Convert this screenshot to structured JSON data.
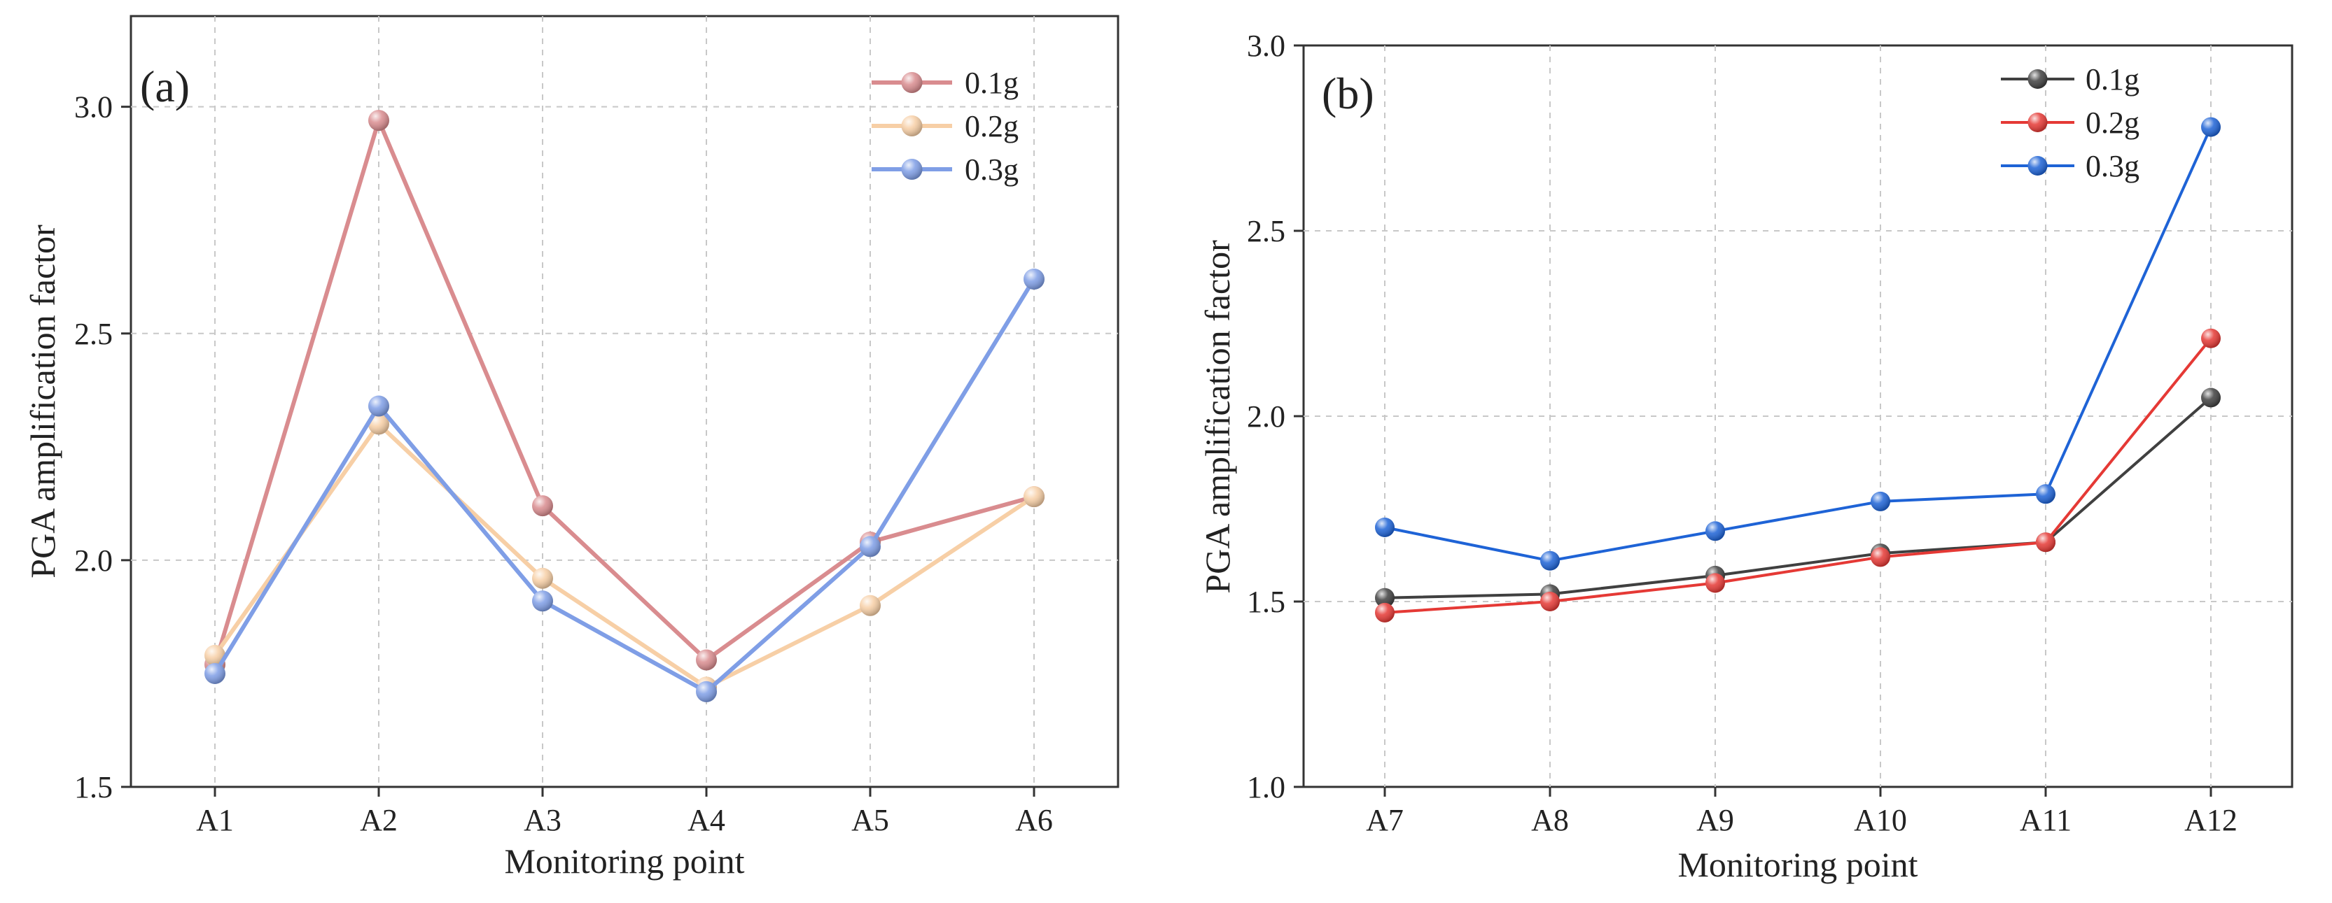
{
  "chart_data": [
    {
      "type": "line",
      "panel_label": "(a)",
      "title": "",
      "xlabel": "Monitoring point",
      "ylabel": "PGA amplification factor",
      "categories": [
        "A1",
        "A2",
        "A3",
        "A4",
        "A5",
        "A6"
      ],
      "ylim": [
        1.5,
        3.2
      ],
      "yticks": [
        1.5,
        2.0,
        2.5,
        3.0
      ],
      "ytick_labels": [
        "1.5",
        "2.0",
        "2.5",
        "3.0"
      ],
      "grid": true,
      "legend_position": "top-right",
      "series": [
        {
          "name": "0.1g",
          "color": "#d98c8f",
          "values": [
            1.77,
            2.97,
            2.12,
            1.78,
            2.04,
            2.14
          ]
        },
        {
          "name": "0.2g",
          "color": "#f7cfa6",
          "values": [
            1.79,
            2.3,
            1.96,
            1.72,
            1.9,
            2.14
          ]
        },
        {
          "name": "0.3g",
          "color": "#7f9ee6",
          "values": [
            1.75,
            2.34,
            1.91,
            1.71,
            2.03,
            2.62
          ]
        }
      ]
    },
    {
      "type": "line",
      "panel_label": "(b)",
      "title": "",
      "xlabel": "Monitoring point",
      "ylabel": "PGA amplification factor",
      "categories": [
        "A7",
        "A8",
        "A9",
        "A10",
        "A11",
        "A12"
      ],
      "ylim": [
        1.0,
        3.0
      ],
      "yticks": [
        1.0,
        1.5,
        2.0,
        2.5,
        3.0
      ],
      "ytick_labels": [
        "1.0",
        "1.5",
        "2.0",
        "2.5",
        "3.0"
      ],
      "grid": true,
      "legend_position": "top-center",
      "series": [
        {
          "name": "0.1g",
          "color": "#404040",
          "values": [
            1.51,
            1.52,
            1.57,
            1.63,
            1.66,
            2.05
          ]
        },
        {
          "name": "0.2g",
          "color": "#e53935",
          "values": [
            1.47,
            1.5,
            1.55,
            1.62,
            1.66,
            2.21
          ]
        },
        {
          "name": "0.3g",
          "color": "#1e63d6",
          "values": [
            1.7,
            1.61,
            1.69,
            1.77,
            1.79,
            2.78
          ]
        }
      ]
    }
  ]
}
